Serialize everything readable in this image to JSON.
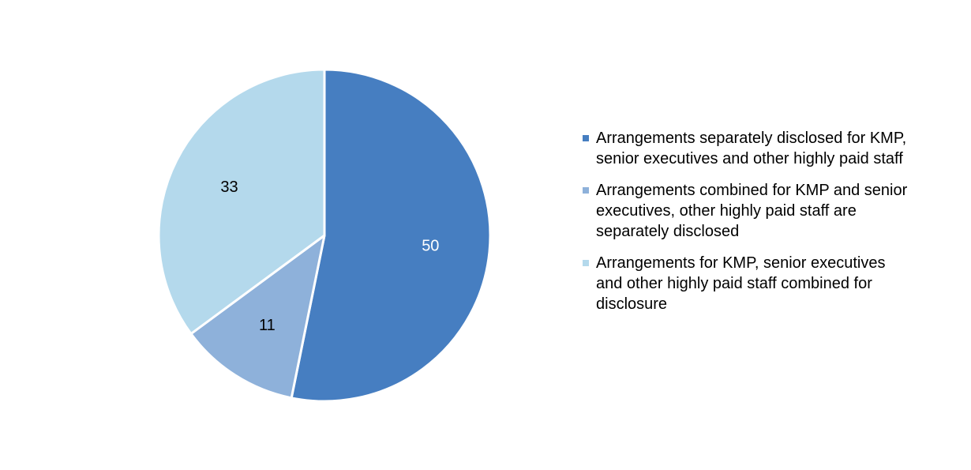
{
  "chart_data": {
    "type": "pie",
    "title": "",
    "series": [
      {
        "values": [
          50,
          11,
          33
        ],
        "labels": [
          "Arrangements separately disclosed for KMP, senior executives and other highly paid staff",
          "Arrangements combined for KMP and senior executives, other highly paid staff are separately disclosed",
          "Arrangements for KMP, senior executives and other highly paid staff combined for disclosure"
        ],
        "colors": [
          "#467ec1",
          "#8eb1da",
          "#b4d9ec"
        ],
        "data_label_colors": [
          "#ffffff",
          "#000000",
          "#000000"
        ]
      }
    ],
    "start_angle_deg": 0,
    "direction": "clockwise",
    "legend_position": "right",
    "legend_marker": "square"
  }
}
